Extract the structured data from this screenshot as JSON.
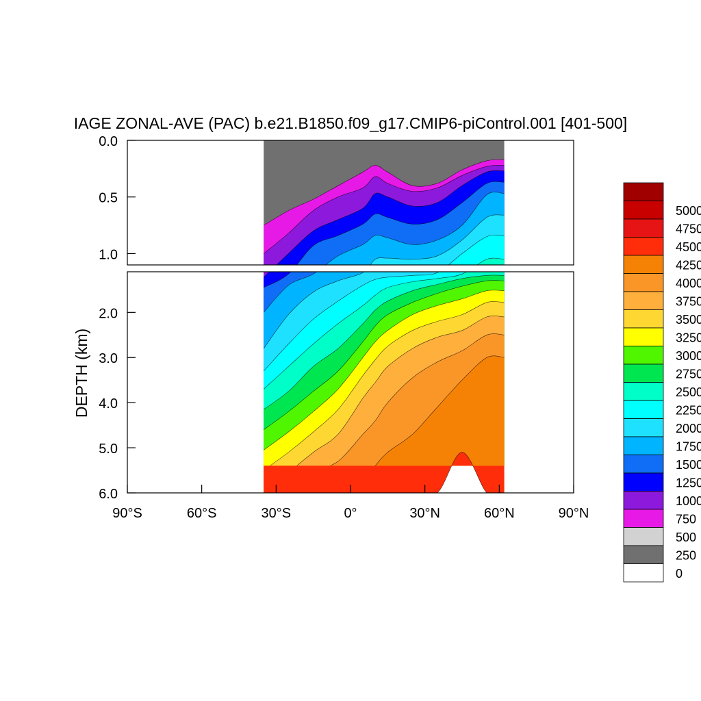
{
  "chart_data": {
    "type": "heatmap",
    "title": "IAGE ZONAL-AVE (PAC) b.e21.B1850.f09_g17.CMIP6-piControl.001 [401-500]",
    "ylabel": "DEPTH (km)",
    "xlabel": "",
    "x_ticks": [
      "90°S",
      "60°S",
      "30°S",
      "0°",
      "30°N",
      "60°N",
      "90°N"
    ],
    "x_tick_values": [
      -90,
      -60,
      -30,
      0,
      30,
      60,
      90
    ],
    "xlim": [
      -90,
      90
    ],
    "upper_panel": {
      "ylim": [
        0.0,
        1.1
      ],
      "y_ticks": [
        "0.0",
        "0.5",
        "1.0"
      ],
      "y_tick_values": [
        0.0,
        0.5,
        1.0
      ]
    },
    "lower_panel": {
      "ylim": [
        1.1,
        6.0
      ],
      "y_ticks": [
        "2.0",
        "3.0",
        "4.0",
        "5.0",
        "6.0"
      ],
      "y_tick_values": [
        2.0,
        3.0,
        4.0,
        5.0,
        6.0
      ]
    },
    "data_extent": {
      "lat_min": -35,
      "lat_max": 62,
      "depth_max": 5.4
    },
    "levels": [
      0,
      250,
      500,
      750,
      1000,
      1250,
      1500,
      1750,
      2000,
      2250,
      2500,
      2750,
      3000,
      3250,
      3500,
      3750,
      4000,
      4250,
      4500,
      4750,
      5000
    ],
    "colorbar_labels": [
      "0",
      "250",
      "500",
      "750",
      "1000",
      "1250",
      "1500",
      "1750",
      "2000",
      "2250",
      "2500",
      "2750",
      "3000",
      "3250",
      "3500",
      "3750",
      "4000",
      "4250",
      "4500",
      "4750",
      "5000"
    ],
    "colors": [
      "#ffffff",
      "#707070",
      "#d2d2d2",
      "#e619e6",
      "#8c19dc",
      "#0000ff",
      "#0f6ef5",
      "#00b4ff",
      "#1ee1ff",
      "#00ffff",
      "#00ffc8",
      "#00e650",
      "#50f500",
      "#ffff00",
      "#ffd732",
      "#ffaf3c",
      "#fa9628",
      "#f58205",
      "#ff2d0a",
      "#e61414",
      "#c80000",
      "#a00000"
    ],
    "contour_depth_profiles": {
      "lats": [
        -35,
        -25,
        -15,
        -5,
        5,
        10,
        15,
        25,
        35,
        45,
        55,
        62
      ],
      "depths_by_level": {
        "250": [
          0.75,
          0.62,
          0.52,
          0.4,
          0.28,
          0.22,
          0.28,
          0.4,
          0.38,
          0.26,
          0.18,
          0.17
        ],
        "500": [
          1.0,
          0.82,
          0.62,
          0.5,
          0.42,
          0.32,
          0.38,
          0.45,
          0.42,
          0.31,
          0.23,
          0.22
        ],
        "750": [
          1.22,
          1.0,
          0.8,
          0.7,
          0.6,
          0.47,
          0.5,
          0.58,
          0.55,
          0.4,
          0.28,
          0.27
        ],
        "1000": [
          1.45,
          1.15,
          0.93,
          0.84,
          0.74,
          0.65,
          0.68,
          0.74,
          0.7,
          0.55,
          0.38,
          0.37
        ],
        "1250": [
          2.0,
          1.4,
          1.15,
          1.02,
          0.92,
          0.84,
          0.86,
          0.92,
          0.88,
          0.75,
          0.48,
          0.47
        ],
        "1500": [
          2.8,
          2.05,
          1.55,
          1.3,
          1.12,
          1.05,
          1.04,
          1.05,
          1.02,
          0.88,
          0.68,
          0.66
        ],
        "1750": [
          3.3,
          2.7,
          2.15,
          1.75,
          1.4,
          1.27,
          1.22,
          1.18,
          1.12,
          1.0,
          0.85,
          0.84
        ],
        "2000": [
          3.7,
          3.2,
          2.7,
          2.25,
          1.85,
          1.62,
          1.45,
          1.32,
          1.25,
          1.15,
          1.05,
          1.05
        ],
        "2250": [
          4.15,
          3.75,
          3.2,
          2.8,
          2.25,
          1.95,
          1.75,
          1.52,
          1.38,
          1.25,
          1.18,
          1.18
        ],
        "2500": [
          4.6,
          4.2,
          3.75,
          3.3,
          2.65,
          2.3,
          2.05,
          1.78,
          1.58,
          1.42,
          1.3,
          1.3
        ],
        "2750": [
          5.05,
          4.65,
          4.2,
          3.7,
          3.0,
          2.65,
          2.4,
          2.05,
          1.85,
          1.7,
          1.52,
          1.52
        ],
        "3000": [
          5.5,
          5.1,
          4.65,
          4.15,
          3.4,
          3.05,
          2.75,
          2.4,
          2.2,
          2.05,
          1.78,
          1.78
        ],
        "3250": [
          6.0,
          5.55,
          5.1,
          4.7,
          3.9,
          3.55,
          3.2,
          2.8,
          2.55,
          2.4,
          2.1,
          2.1
        ],
        "3500": [
          6.0,
          6.0,
          5.55,
          5.3,
          4.7,
          4.4,
          4.0,
          3.45,
          3.1,
          2.85,
          2.5,
          2.5
        ],
        "3750": [
          6.0,
          6.0,
          6.0,
          6.0,
          5.8,
          5.4,
          5.1,
          4.7,
          4.1,
          3.5,
          3.0,
          3.0
        ],
        "4000": [
          6.0,
          6.0,
          6.0,
          6.0,
          6.0,
          6.0,
          6.0,
          6.0,
          6.0,
          5.1,
          6.0,
          6.0
        ]
      }
    }
  }
}
